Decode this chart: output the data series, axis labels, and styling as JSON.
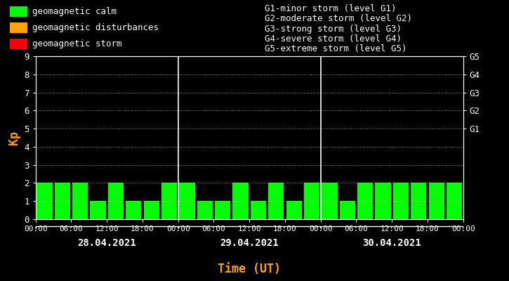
{
  "background_color": "#000000",
  "plot_bg_color": "#000000",
  "bar_color_calm": "#00ff00",
  "bar_color_disturbance": "#ffa500",
  "bar_color_storm": "#ff0000",
  "text_color": "#ffffff",
  "axis_color": "#ffffff",
  "xlabel_color": "#ffa500",
  "kp_label_color": "#ffa500",
  "grid_color": "#ffffff",
  "day1_date": "28.04.2021",
  "day2_date": "29.04.2021",
  "day3_date": "30.04.2021",
  "xlabel": "Time (UT)",
  "ylabel": "Kp",
  "ylim": [
    0,
    9
  ],
  "yticks": [
    0,
    1,
    2,
    3,
    4,
    5,
    6,
    7,
    8,
    9
  ],
  "right_labels": [
    "G5",
    "G4",
    "G3",
    "G2",
    "G1"
  ],
  "right_label_yticks": [
    9,
    8,
    7,
    6,
    5
  ],
  "right_label_color": "#ffffff",
  "legend_items": [
    {
      "label": "geomagnetic calm",
      "color": "#00ff00"
    },
    {
      "label": "geomagnetic disturbances",
      "color": "#ffa500"
    },
    {
      "label": "geomagnetic storm",
      "color": "#ff0000"
    }
  ],
  "right_legend_lines": [
    "G1-minor storm (level G1)",
    "G2-moderate storm (level G2)",
    "G3-strong storm (level G3)",
    "G4-severe storm (level G4)",
    "G5-extreme storm (level G5)"
  ],
  "kp_values_day1": [
    2,
    2,
    2,
    1,
    2,
    1,
    1,
    2
  ],
  "kp_values_day2": [
    2,
    1,
    1,
    2,
    1,
    2,
    1,
    2
  ],
  "kp_values_day3": [
    2,
    1,
    2,
    2,
    2,
    2,
    2,
    2
  ],
  "time_labels": [
    "00:00",
    "06:00",
    "12:00",
    "18:00",
    "00:00",
    "06:00",
    "12:00",
    "18:00",
    "00:00",
    "06:00",
    "12:00",
    "18:00",
    "00:00"
  ],
  "vline_positions": [
    8,
    16
  ],
  "font_family": "monospace",
  "font_size": 9
}
